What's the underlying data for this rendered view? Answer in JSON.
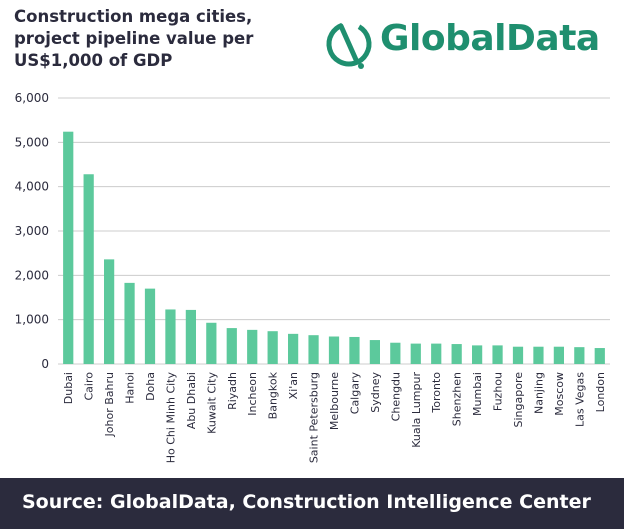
{
  "title_lines": [
    "Construction mega cities,",
    "project pipeline value per",
    "US$1,000 of GDP"
  ],
  "brand": {
    "name": "GlobalData",
    "logo_icon": "globaldata-logo-icon",
    "color": "#1f8f6f"
  },
  "footer": {
    "source": "Source:  GlobalData, Construction Intelligence Center"
  },
  "colors": {
    "bar": "#5cc99c",
    "grid": "#cccccc",
    "text": "#2b2b3d",
    "footer_bg": "#2b2b3d"
  },
  "chart_data": {
    "type": "bar",
    "categories": [
      "Dubai",
      "Cairo",
      "Johor Bahru",
      "Hanoi",
      "Doha",
      "Ho Chi Minh City",
      "Abu Dhabi",
      "Kuwait City",
      "Riyadh",
      "Incheon",
      "Bangkok",
      "Xi'an",
      "Saint Petersburg",
      "Melbourne",
      "Calgary",
      "Sydney",
      "Chengdu",
      "Kuala Lumpur",
      "Toronto",
      "Shenzhen",
      "Mumbai",
      "Fuzhou",
      "Singapore",
      "Nanjing",
      "Moscow",
      "Las Vegas",
      "London"
    ],
    "values": [
      5240,
      4280,
      2360,
      1830,
      1700,
      1230,
      1220,
      930,
      810,
      770,
      740,
      680,
      650,
      620,
      610,
      540,
      480,
      460,
      460,
      450,
      420,
      420,
      390,
      390,
      390,
      380,
      360
    ],
    "ylim": [
      0,
      6000
    ],
    "yticks": [
      0,
      1000,
      2000,
      3000,
      4000,
      5000,
      6000
    ],
    "ytick_labels": [
      "0",
      "1,000",
      "2,000",
      "3,000",
      "4,000",
      "5,000",
      "6,000"
    ],
    "grid": true
  }
}
